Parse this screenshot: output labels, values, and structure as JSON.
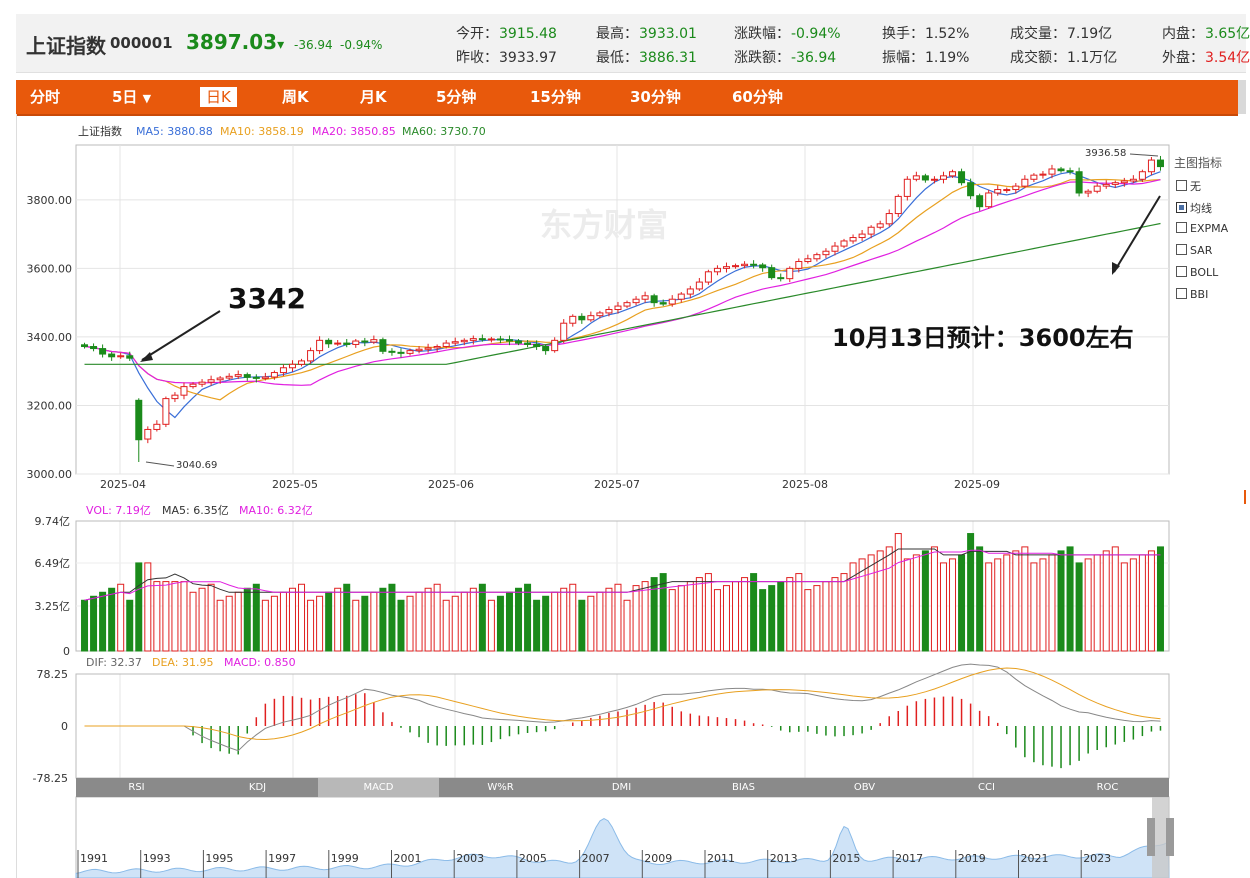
{
  "quote": {
    "name": "上证指数",
    "code": "000001",
    "price": "3897.03",
    "arrow": "▾",
    "change": "-36.94",
    "change_pct": "-0.94%",
    "stats": [
      {
        "label": "今开：",
        "value": "3915.48",
        "color": "#1b8a1b"
      },
      {
        "label": "昨收：",
        "value": "3933.97",
        "color": "#333333"
      },
      {
        "label": "最高：",
        "value": "3933.01",
        "color": "#1b8a1b"
      },
      {
        "label": "最低：",
        "value": "3886.31",
        "color": "#1b8a1b"
      },
      {
        "label": "涨跌幅：",
        "value": "-0.94%",
        "color": "#1b8a1b"
      },
      {
        "label": "涨跌额：",
        "value": "-36.94",
        "color": "#1b8a1b"
      },
      {
        "label": "换手：",
        "value": "1.52%",
        "color": "#333333"
      },
      {
        "label": "振幅：",
        "value": "1.19%",
        "color": "#333333"
      },
      {
        "label": "成交量：",
        "value": "7.19亿",
        "color": "#333333"
      },
      {
        "label": "成交额：",
        "value": "1.1万亿",
        "color": "#333333"
      },
      {
        "label": "内盘：",
        "value": "3.65亿",
        "color": "#1b8a1b"
      },
      {
        "label": "外盘：",
        "value": "3.54亿",
        "color": "#e02020"
      }
    ]
  },
  "tabs": [
    "分时",
    "5日",
    "日K",
    "周K",
    "月K",
    "5分钟",
    "15分钟",
    "30分钟",
    "60分钟"
  ],
  "tab_dropdown_icon": "caret-down-icon",
  "active_tab": "日K",
  "legend_main": {
    "name": "上证指数",
    "ma5": "MA5: 3880.88",
    "ma10": "MA10: 3858.19",
    "ma20": "MA20: 3850.85",
    "ma60": "MA60: 3730.70"
  },
  "legend_vol": {
    "vol": "VOL: 7.19亿",
    "ma5": "MA5: 6.35亿",
    "ma10": "MA10: 6.32亿"
  },
  "legend_macd": {
    "dif": "DIF: 32.37",
    "dea": "DEA: 31.95",
    "macd": "MACD: 0.850"
  },
  "watermark": "东方财富",
  "side": {
    "title": "主图指标",
    "items": [
      {
        "label": "无",
        "checked": false
      },
      {
        "label": "均线",
        "checked": true
      },
      {
        "label": "EXPMA",
        "checked": false
      },
      {
        "label": "SAR",
        "checked": false
      },
      {
        "label": "BOLL",
        "checked": false
      },
      {
        "label": "BBI",
        "checked": false
      }
    ]
  },
  "indicator_tabs": [
    "RSI",
    "KDJ",
    "MACD",
    "W%R",
    "DMI",
    "BIAS",
    "OBV",
    "CCI",
    "ROC"
  ],
  "active_indicator": "MACD",
  "annotations": {
    "left_big": "3342",
    "right_big": "10月13日预计：3600左右",
    "high_label": "3936.58",
    "low_label": "3040.69"
  },
  "overview_years": [
    "1991",
    "1993",
    "1995",
    "1997",
    "1999",
    "2001",
    "2003",
    "2005",
    "2007",
    "2009",
    "2011",
    "2013",
    "2015",
    "2017",
    "2019",
    "2021",
    "2023"
  ],
  "colors": {
    "up": "#e02020",
    "down": "#1b8a1b",
    "ma5": "#3a6fd8",
    "ma10": "#e8a020",
    "ma20": "#e020e0",
    "ma60": "#2a8a2a",
    "tabbar": "#e8590c"
  },
  "chart_data": {
    "type": "candlestick",
    "y_axis_ticks": [
      "3000.00",
      "3200.00",
      "3400.00",
      "3600.00",
      "3800.00"
    ],
    "ylim": [
      3000,
      3960
    ],
    "x_axis_ticks": [
      "2025-04",
      "2025-05",
      "2025-06",
      "2025-07",
      "2025-08",
      "2025-09"
    ],
    "vol_axis_ticks": [
      "9.74亿",
      "6.49亿",
      "3.25亿",
      "0"
    ],
    "macd_axis_ticks": [
      "78.25",
      "0",
      "-78.25"
    ],
    "close_series": [
      3372,
      3366,
      3350,
      3342,
      3345,
      3338,
      3100,
      3130,
      3145,
      3220,
      3230,
      3255,
      3262,
      3268,
      3275,
      3280,
      3285,
      3290,
      3282,
      3279,
      3283,
      3296,
      3310,
      3320,
      3330,
      3360,
      3390,
      3380,
      3382,
      3378,
      3388,
      3385,
      3392,
      3358,
      3355,
      3352,
      3360,
      3364,
      3368,
      3372,
      3382,
      3386,
      3390,
      3395,
      3392,
      3394,
      3392,
      3388,
      3382,
      3378,
      3372,
      3360,
      3390,
      3440,
      3460,
      3450,
      3462,
      3470,
      3480,
      3490,
      3500,
      3510,
      3520,
      3500,
      3496,
      3510,
      3525,
      3540,
      3560,
      3590,
      3600,
      3605,
      3608,
      3612,
      3610,
      3602,
      3573,
      3570,
      3600,
      3620,
      3628,
      3640,
      3650,
      3665,
      3680,
      3690,
      3700,
      3720,
      3730,
      3760,
      3810,
      3860,
      3870,
      3858,
      3860,
      3870,
      3882,
      3850,
      3812,
      3780,
      3820,
      3830,
      3830,
      3840,
      3860,
      3872,
      3875,
      3890,
      3885,
      3882,
      3820,
      3825,
      3840,
      3845,
      3850,
      3855,
      3860,
      3882,
      3916,
      3897
    ],
    "macd_ylim": [
      -78.25,
      78.25
    ]
  }
}
